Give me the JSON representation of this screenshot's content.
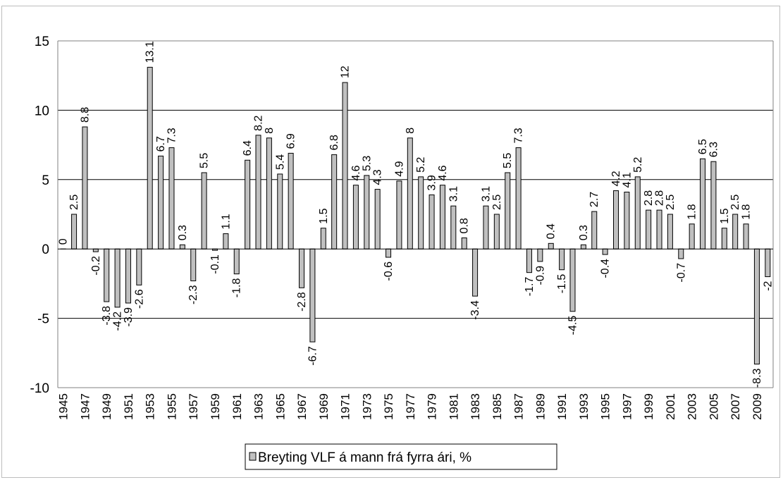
{
  "chart_data": {
    "type": "bar",
    "title": "",
    "xlabel": "",
    "ylabel": "",
    "ylim": [
      -10,
      15
    ],
    "yticks": [
      "15",
      "10",
      "5",
      "0",
      "-5",
      "-10"
    ],
    "grid": true,
    "legend_position": "bottom",
    "categories": [
      "1945",
      "1946",
      "1947",
      "1948",
      "1949",
      "1950",
      "1951",
      "1952",
      "1953",
      "1954",
      "1955",
      "1956",
      "1957",
      "1958",
      "1959",
      "1960",
      "1961",
      "1962",
      "1963",
      "1964",
      "1965",
      "1966",
      "1967",
      "1968",
      "1969",
      "1970",
      "1971",
      "1972",
      "1973",
      "1974",
      "1975",
      "1976",
      "1977",
      "1978",
      "1979",
      "1980",
      "1981",
      "1982",
      "1983",
      "1984",
      "1985",
      "1986",
      "1987",
      "1988",
      "1989",
      "1990",
      "1991",
      "1992",
      "1993",
      "1994",
      "1995",
      "1996",
      "1997",
      "1998",
      "1999",
      "2000",
      "2001",
      "2002",
      "2003",
      "2004",
      "2005",
      "2006",
      "2007",
      "2008",
      "2009",
      "2010"
    ],
    "x_tick_labels": [
      "1945",
      "1947",
      "1949",
      "1951",
      "1953",
      "1955",
      "1957",
      "1959",
      "1961",
      "1963",
      "1965",
      "1967",
      "1969",
      "1971",
      "1973",
      "1975",
      "1977",
      "1979",
      "1981",
      "1983",
      "1985",
      "1987",
      "1989",
      "1991",
      "1993",
      "1995",
      "1997",
      "1999",
      "2001",
      "2003",
      "2005",
      "2007",
      "2009"
    ],
    "series": [
      {
        "name": "Breyting VLF á mann frá fyrra ári, %",
        "values": [
          0,
          2.5,
          8.8,
          -0.2,
          -3.8,
          -4.2,
          -3.9,
          -2.6,
          13.1,
          6.7,
          7.3,
          0.3,
          -2.3,
          5.5,
          -0.1,
          1.1,
          -1.8,
          6.4,
          8.2,
          8,
          5.4,
          6.9,
          -2.8,
          -6.7,
          1.5,
          6.8,
          12,
          4.6,
          5.3,
          4.3,
          -0.6,
          4.9,
          8,
          5.2,
          3.9,
          4.6,
          3.1,
          0.8,
          -3.4,
          3.1,
          2.5,
          5.5,
          7.3,
          -1.7,
          -0.9,
          0.4,
          -1.5,
          -4.5,
          0.3,
          2.7,
          -0.4,
          4.2,
          4.1,
          5.2,
          2.8,
          2.8,
          2.5,
          -0.7,
          1.8,
          6.5,
          6.3,
          1.5,
          2.5,
          1.8,
          -8.3,
          -2
        ],
        "data_labels": [
          "0",
          "2.5",
          "8.8",
          "-0.2",
          "-3.8",
          "-4.2",
          "-3.9",
          "-2.6",
          "13.1",
          "6.7",
          "7.3",
          "0.3",
          "-2.3",
          "5.5",
          "-0.1",
          "1.1",
          "-1.8",
          "6.4",
          "8.2",
          "8",
          "5.4",
          "6.9",
          "-2.8",
          "-6.7",
          "1.5",
          "6.8",
          "12",
          "4.6",
          "5.3",
          "4.3",
          "-0.6",
          "4.9",
          "8",
          "5.2",
          "3.9",
          "4.6",
          "3.1",
          "0.8",
          "-3.4",
          "3.1",
          "2.5",
          "5.5",
          "7.3",
          "-1.7",
          "-0.9",
          "0.4",
          "-1.5",
          "-4.5",
          "0.3",
          "2.7",
          "-0.4",
          "4.2",
          "4.1",
          "5.2",
          "2.8",
          "2.8",
          "2.5",
          "-0.7",
          "1.8",
          "6.5",
          "6.3",
          "1.5",
          "2.5",
          "1.8",
          "-8.3",
          "-2"
        ]
      }
    ],
    "colors": {
      "bar_fill": "#c0c0c0",
      "bar_stroke": "#000000",
      "grid": "#000000",
      "background": "#ffffff"
    }
  }
}
